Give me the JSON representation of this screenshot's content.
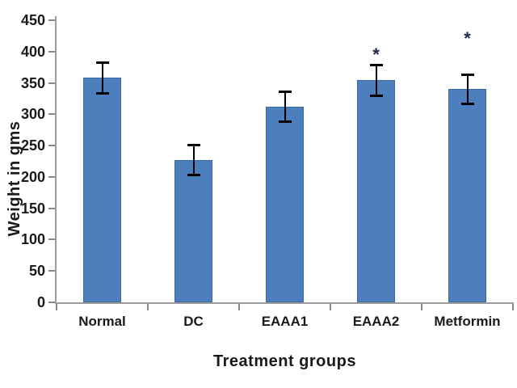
{
  "chart_data": {
    "type": "bar",
    "title": "",
    "xlabel": "Treatment groups",
    "ylabel": "Weight in gms",
    "categories": [
      "Normal",
      "DC",
      "EAAA1",
      "EAAA2",
      "Metformin"
    ],
    "values": [
      358,
      227,
      312,
      354,
      340
    ],
    "errors": [
      25,
      25,
      24,
      25,
      24
    ],
    "annotations": [
      {
        "category_index": 3,
        "text": "*",
        "y_value": 398
      },
      {
        "category_index": 4,
        "text": "*",
        "y_value": 424
      }
    ],
    "ylim": [
      0,
      450
    ],
    "yticks": [
      0,
      50,
      100,
      150,
      200,
      250,
      300,
      350,
      400,
      450
    ],
    "grid": false,
    "legend": false,
    "colors": {
      "bar_fill": "#4d7ebd",
      "bar_border": "#3b69a0",
      "error_bar": "#000000",
      "axis": "#9c9c9c",
      "tick": "#8a8a8a",
      "text": "#1a1a1a",
      "annotation": "#1b2a4a"
    }
  }
}
